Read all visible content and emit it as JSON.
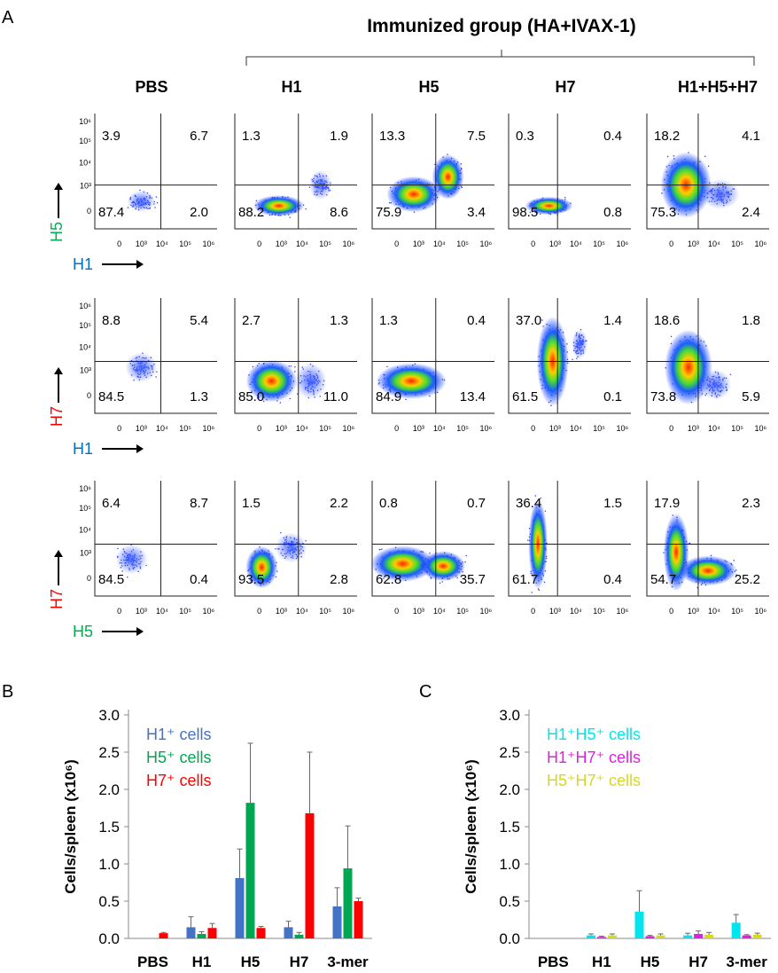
{
  "panel_a": {
    "letter": "A",
    "group_title": "Immunized group (HA+IVAX-1)",
    "columns": [
      "PBS",
      "H1",
      "H5",
      "H7",
      "H1+H5+H7"
    ],
    "y_ticks": [
      "10⁶",
      "10⁵",
      "10⁴",
      "10³",
      "0"
    ],
    "x_ticks": [
      "0",
      "10³",
      "10⁴",
      "10⁵",
      "10⁶"
    ],
    "rows": [
      {
        "y_label": "H5",
        "x_label": "H1",
        "y_color": "#00b050",
        "x_color": "#0070c0",
        "quadrants": [
          {
            "ul": "3.9",
            "ur": "6.7",
            "ll": "87.4",
            "lr": "2.0"
          },
          {
            "ul": "1.3",
            "ur": "1.9",
            "ll": "88.2",
            "lr": "8.6"
          },
          {
            "ul": "13.3",
            "ur": "7.5",
            "ll": "75.9",
            "lr": "3.4"
          },
          {
            "ul": "0.3",
            "ur": "0.4",
            "ll": "98.5",
            "lr": "0.8"
          },
          {
            "ul": "18.2",
            "ur": "4.1",
            "ll": "75.3",
            "lr": "2.4"
          }
        ]
      },
      {
        "y_label": "H7",
        "x_label": "H1",
        "y_color": "#ff0000",
        "x_color": "#0070c0",
        "quadrants": [
          {
            "ul": "8.8",
            "ur": "5.4",
            "ll": "84.5",
            "lr": "1.3"
          },
          {
            "ul": "2.7",
            "ur": "1.3",
            "ll": "85.0",
            "lr": "11.0"
          },
          {
            "ul": "1.3",
            "ur": "0.4",
            "ll": "84.9",
            "lr": "13.4"
          },
          {
            "ul": "37.0",
            "ur": "1.4",
            "ll": "61.5",
            "lr": "0.1"
          },
          {
            "ul": "18.6",
            "ur": "1.8",
            "ll": "73.8",
            "lr": "5.9"
          }
        ]
      },
      {
        "y_label": "H7",
        "x_label": "H5",
        "y_color": "#ff0000",
        "x_color": "#00b050",
        "quadrants": [
          {
            "ul": "6.4",
            "ur": "8.7",
            "ll": "84.5",
            "lr": "0.4"
          },
          {
            "ul": "1.5",
            "ur": "2.2",
            "ll": "93.5",
            "lr": "2.8"
          },
          {
            "ul": "0.8",
            "ur": "0.7",
            "ll": "62.8",
            "lr": "35.7"
          },
          {
            "ul": "36.4",
            "ur": "1.5",
            "ll": "61.7",
            "lr": "0.4"
          },
          {
            "ul": "17.9",
            "ur": "2.3",
            "ll": "54.7",
            "lr": "25.2"
          }
        ]
      }
    ]
  },
  "chart_data": [
    {
      "panel": "B",
      "type": "bar",
      "ylabel": "Cells/spleen (x10⁶)",
      "xlabel": "",
      "ylim": [
        0,
        3.0
      ],
      "y_ticks": [
        "0.0",
        "0.5",
        "1.0",
        "1.5",
        "2.0",
        "2.5",
        "3.0"
      ],
      "categories": [
        "PBS",
        "H1",
        "H5",
        "H7",
        "3-mer"
      ],
      "legend_position": "top-left",
      "series": [
        {
          "name": "H1⁺ cells",
          "color": "#4472c4",
          "values": [
            0.0,
            0.15,
            0.81,
            0.15,
            0.43
          ],
          "errors": [
            0.0,
            0.14,
            0.39,
            0.08,
            0.25
          ]
        },
        {
          "name": "H5⁺ cells",
          "color": "#00a651",
          "values": [
            0.0,
            0.06,
            1.82,
            0.05,
            0.94
          ],
          "errors": [
            0.0,
            0.03,
            0.8,
            0.03,
            0.57
          ]
        },
        {
          "name": "H7⁺ cells",
          "color": "#ff0000",
          "values": [
            0.07,
            0.14,
            0.14,
            1.68,
            0.5
          ],
          "errors": [
            0.01,
            0.06,
            0.02,
            0.82,
            0.04
          ]
        }
      ]
    },
    {
      "panel": "C",
      "type": "bar",
      "ylabel": "Cells/spleen (x10⁶)",
      "xlabel": "",
      "ylim": [
        0,
        3.0
      ],
      "y_ticks": [
        "0.0",
        "0.5",
        "1.0",
        "1.5",
        "2.0",
        "2.5",
        "3.0"
      ],
      "categories": [
        "PBS",
        "H1",
        "H5",
        "H7",
        "3-mer"
      ],
      "legend_position": "top-left",
      "series": [
        {
          "name": "H1⁺H5⁺ cells",
          "color": "#00e5ee",
          "values": [
            0.0,
            0.04,
            0.36,
            0.04,
            0.21
          ],
          "errors": [
            0.0,
            0.02,
            0.28,
            0.03,
            0.11
          ]
        },
        {
          "name": "H1⁺H7⁺ cells",
          "color": "#e020e0",
          "values": [
            0.0,
            0.02,
            0.03,
            0.06,
            0.04
          ],
          "errors": [
            0.0,
            0.01,
            0.01,
            0.04,
            0.01
          ]
        },
        {
          "name": "H5⁺H7⁺ cells",
          "color": "#d8d820",
          "values": [
            0.0,
            0.04,
            0.04,
            0.05,
            0.05
          ],
          "errors": [
            0.0,
            0.02,
            0.02,
            0.03,
            0.02
          ]
        }
      ]
    }
  ]
}
